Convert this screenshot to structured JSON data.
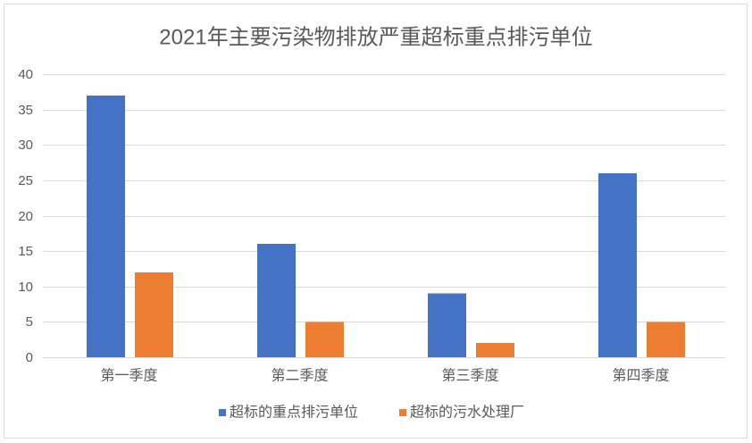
{
  "chart_data": {
    "type": "bar",
    "title": "2021年主要污染物排放严重超标重点排污单位",
    "categories": [
      "第一季度",
      "第二季度",
      "第三季度",
      "第四季度"
    ],
    "series": [
      {
        "name": "超标的重点排污单位",
        "values": [
          37,
          16,
          9,
          26
        ],
        "color": "#4472C4"
      },
      {
        "name": "超标的污水处理厂",
        "values": [
          12,
          5,
          2,
          5
        ],
        "color": "#ED7D31"
      }
    ],
    "ylim": [
      0,
      40
    ],
    "yticks": [
      0,
      5,
      10,
      15,
      20,
      25,
      30,
      35,
      40
    ],
    "grid": true,
    "legend": "bottom"
  }
}
